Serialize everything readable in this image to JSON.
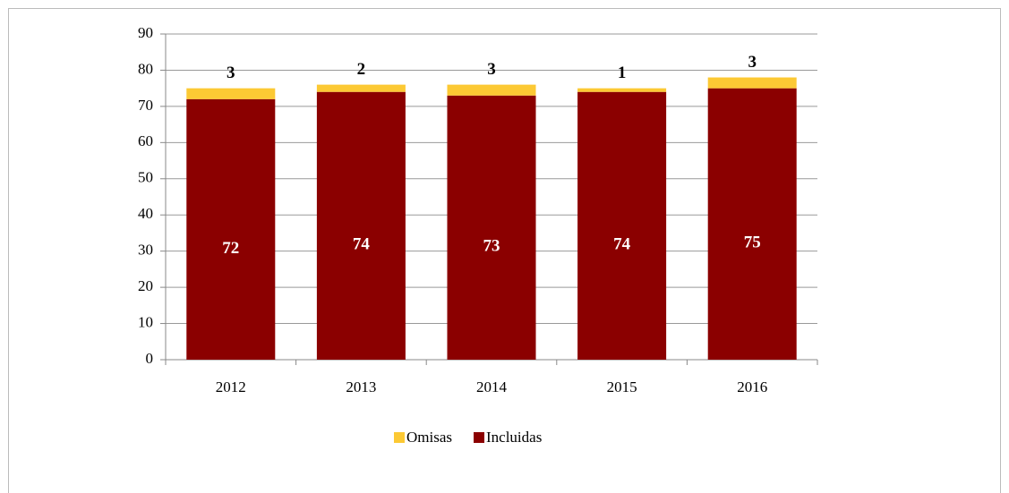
{
  "chart_data": {
    "type": "bar",
    "stacked": true,
    "categories": [
      "2012",
      "2013",
      "2014",
      "2015",
      "2016"
    ],
    "series": [
      {
        "name": "Omisas",
        "color": "#fcc934",
        "values": [
          3,
          2,
          3,
          1,
          3
        ]
      },
      {
        "name": "Incluidas",
        "color": "#8b0000",
        "values": [
          72,
          74,
          73,
          74,
          75
        ]
      }
    ],
    "ylim": [
      0,
      90
    ],
    "yticks": [
      0,
      10,
      20,
      30,
      40,
      50,
      60,
      70,
      80,
      90
    ],
    "grid": true,
    "legend": "bottom"
  }
}
